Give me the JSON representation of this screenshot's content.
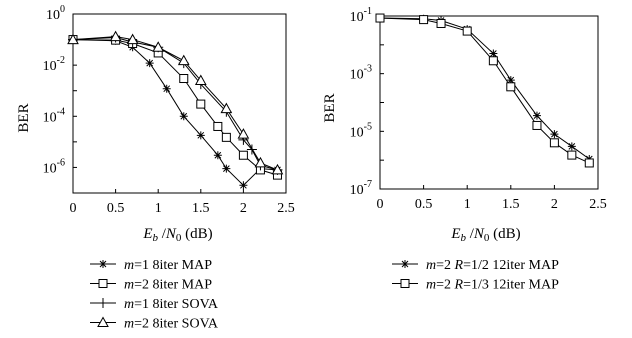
{
  "chart_data": [
    {
      "type": "line",
      "ylabel": "BER",
      "xlabel": {
        "sym_E": "E",
        "sub_b": "b",
        "slash": " /",
        "sym_N": "N",
        "sub_0": "0",
        "unit": " (dB)"
      },
      "x_ticks": [
        "0",
        "0.5",
        "1",
        "1.5",
        "2",
        "2.5"
      ],
      "y_ticks": [
        {
          "base": "10",
          "exp": "0",
          "value": 1
        },
        {
          "base": "10",
          "exp": "-2",
          "value": 0.01
        },
        {
          "base": "10",
          "exp": "-4",
          "value": 0.0001
        },
        {
          "base": "10",
          "exp": "-6",
          "value": 1e-06
        }
      ],
      "xlim": [
        0,
        2.5
      ],
      "ylim_log10": [
        -7,
        0
      ],
      "yscale": "log",
      "grid": false,
      "legend_position": "below",
      "series": [
        {
          "m": "m",
          "rest": "=1 8iter MAP",
          "marker": "star",
          "x": [
            0,
            0.5,
            0.7,
            0.9,
            1.1,
            1.3,
            1.5,
            1.7,
            1.8,
            2.0,
            2.2,
            2.4
          ],
          "y": [
            0.1,
            0.09,
            0.05,
            0.012,
            0.0012,
            0.0001,
            1.8e-05,
            3e-06,
            9e-07,
            2e-07,
            9e-07,
            8e-07
          ]
        },
        {
          "m": "m",
          "rest": "=2 8iter MAP",
          "marker": "square",
          "x": [
            0,
            0.5,
            0.7,
            1.0,
            1.3,
            1.5,
            1.7,
            1.8,
            2.0,
            2.2,
            2.4
          ],
          "y": [
            0.1,
            0.095,
            0.07,
            0.03,
            0.003,
            0.0003,
            4e-05,
            1.5e-05,
            3e-06,
            8e-07,
            5e-07
          ]
        },
        {
          "m": "m",
          "rest": "=1 8iter SOVA",
          "marker": "plus",
          "x": [
            0,
            0.5,
            0.7,
            1.0,
            1.3,
            1.5,
            1.8,
            2.0,
            2.1,
            2.2,
            2.4
          ],
          "y": [
            0.1,
            0.12,
            0.08,
            0.05,
            0.012,
            0.0018,
            0.00015,
            1.2e-05,
            5e-06,
            1.2e-06,
            8e-07
          ]
        },
        {
          "m": "m",
          "rest": "=2 8iter SOVA",
          "marker": "triangle",
          "x": [
            0,
            0.5,
            0.7,
            1.0,
            1.3,
            1.5,
            1.8,
            2.0,
            2.2,
            2.4
          ],
          "y": [
            0.1,
            0.13,
            0.1,
            0.05,
            0.015,
            0.0025,
            0.0002,
            2e-05,
            1.5e-06,
            8e-07
          ]
        }
      ]
    },
    {
      "type": "line",
      "ylabel": "BER",
      "xlabel": {
        "sym_E": "E",
        "sub_b": "b",
        "slash": " /",
        "sym_N": "N",
        "sub_0": "0",
        "unit": " (dB)"
      },
      "x_ticks": [
        "0",
        "0.5",
        "1",
        "1.5",
        "2",
        "2.5"
      ],
      "y_ticks": [
        {
          "base": "10",
          "exp": "-1",
          "value": 0.1
        },
        {
          "base": "10",
          "exp": "-3",
          "value": 0.001
        },
        {
          "base": "10",
          "exp": "-5",
          "value": 1e-05
        },
        {
          "base": "10",
          "exp": "-7",
          "value": 1e-07
        }
      ],
      "xlim": [
        0,
        2.5
      ],
      "ylim_log10": [
        -7,
        -1
      ],
      "yscale": "log",
      "grid": false,
      "legend_position": "below",
      "series": [
        {
          "m": "m",
          "mid": "=2 ",
          "r": "R",
          "rest": "=1/2 12iter MAP",
          "marker": "star",
          "x": [
            0,
            0.5,
            0.7,
            1.0,
            1.3,
            1.5,
            1.8,
            2.0,
            2.2,
            2.4
          ],
          "y": [
            0.085,
            0.08,
            0.07,
            0.035,
            0.005,
            0.0006,
            3.5e-05,
            8e-06,
            3e-06,
            1.1e-06
          ]
        },
        {
          "m": "m",
          "mid": "=2 ",
          "r": "R",
          "rest": "=1/3 12iter MAP",
          "marker": "square",
          "x": [
            0,
            0.5,
            0.7,
            1.0,
            1.3,
            1.5,
            1.8,
            2.0,
            2.2,
            2.4
          ],
          "y": [
            0.085,
            0.075,
            0.055,
            0.03,
            0.0028,
            0.00035,
            1.6e-05,
            4e-06,
            1.5e-06,
            8e-07
          ]
        }
      ]
    }
  ]
}
